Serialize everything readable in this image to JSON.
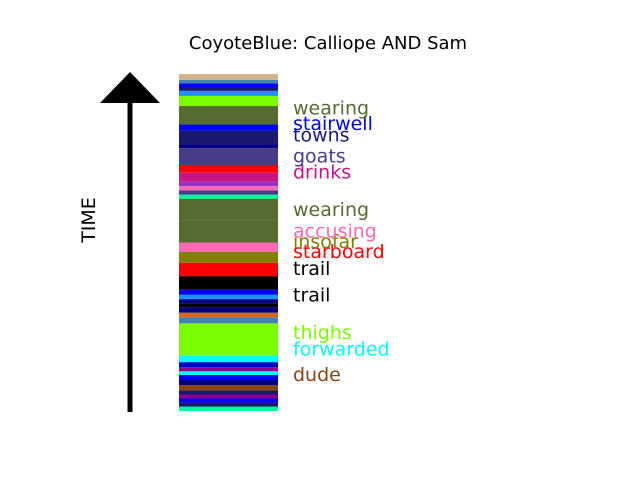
{
  "chart_data": {
    "type": "timeline",
    "title": "CoyoteBlue: Calliope AND Sam",
    "ylabel": "TIME",
    "y_range": [
      0,
      1
    ],
    "segments": [
      {
        "start": 0.0,
        "end": 0.013,
        "color": "#00FA9A"
      },
      {
        "start": 0.013,
        "end": 0.025,
        "color": "#191970"
      },
      {
        "start": 0.025,
        "end": 0.037,
        "color": "#0000FF"
      },
      {
        "start": 0.037,
        "end": 0.049,
        "color": "#8B008B"
      },
      {
        "start": 0.049,
        "end": 0.061,
        "color": "#191970"
      },
      {
        "start": 0.061,
        "end": 0.077,
        "color": "#8B4513"
      },
      {
        "start": 0.077,
        "end": 0.092,
        "color": "#000080"
      },
      {
        "start": 0.092,
        "end": 0.107,
        "color": "#0000FF"
      },
      {
        "start": 0.107,
        "end": 0.118,
        "color": "#00FFFF"
      },
      {
        "start": 0.118,
        "end": 0.13,
        "color": "#8B008B"
      },
      {
        "start": 0.13,
        "end": 0.145,
        "color": "#0000CD"
      },
      {
        "start": 0.145,
        "end": 0.165,
        "color": "#00FFFF"
      },
      {
        "start": 0.165,
        "end": 0.26,
        "color": "#7CFC00"
      },
      {
        "start": 0.26,
        "end": 0.278,
        "color": "#4682B4"
      },
      {
        "start": 0.278,
        "end": 0.292,
        "color": "#D2691E"
      },
      {
        "start": 0.292,
        "end": 0.308,
        "color": "#000080"
      },
      {
        "start": 0.308,
        "end": 0.32,
        "color": "#000000"
      },
      {
        "start": 0.32,
        "end": 0.332,
        "color": "#00008B"
      },
      {
        "start": 0.332,
        "end": 0.345,
        "color": "#1E90FF"
      },
      {
        "start": 0.345,
        "end": 0.36,
        "color": "#0000FF"
      },
      {
        "start": 0.36,
        "end": 0.4,
        "color": "#000000"
      },
      {
        "start": 0.4,
        "end": 0.44,
        "color": "#FF0000"
      },
      {
        "start": 0.44,
        "end": 0.472,
        "color": "#808000"
      },
      {
        "start": 0.472,
        "end": 0.5,
        "color": "#FF69B4"
      },
      {
        "start": 0.5,
        "end": 0.565,
        "color": "#556B2F"
      },
      {
        "start": 0.565,
        "end": 0.63,
        "color": "#556B2F"
      },
      {
        "start": 0.63,
        "end": 0.642,
        "color": "#00FA9A"
      },
      {
        "start": 0.642,
        "end": 0.655,
        "color": "#483D8B"
      },
      {
        "start": 0.655,
        "end": 0.667,
        "color": "#FF69B4"
      },
      {
        "start": 0.667,
        "end": 0.68,
        "color": "#9932CC"
      },
      {
        "start": 0.68,
        "end": 0.707,
        "color": "#C71585"
      },
      {
        "start": 0.707,
        "end": 0.73,
        "color": "#FF0000"
      },
      {
        "start": 0.73,
        "end": 0.78,
        "color": "#483D8B"
      },
      {
        "start": 0.78,
        "end": 0.792,
        "color": "#000080"
      },
      {
        "start": 0.792,
        "end": 0.832,
        "color": "#191970"
      },
      {
        "start": 0.832,
        "end": 0.85,
        "color": "#0000FF"
      },
      {
        "start": 0.85,
        "end": 0.905,
        "color": "#556B2F"
      },
      {
        "start": 0.905,
        "end": 0.935,
        "color": "#7CFC00"
      },
      {
        "start": 0.935,
        "end": 0.95,
        "color": "#1E90FF"
      },
      {
        "start": 0.95,
        "end": 0.96,
        "color": "#191970"
      },
      {
        "start": 0.96,
        "end": 0.972,
        "color": "#0000FF"
      },
      {
        "start": 0.972,
        "end": 0.983,
        "color": "#4682B4"
      },
      {
        "start": 0.983,
        "end": 1.0,
        "color": "#D2B48C"
      }
    ],
    "labels": [
      {
        "text": "dude",
        "y": 0.11,
        "color": "#8B4513"
      },
      {
        "text": "forwarded",
        "y": 0.185,
        "color": "#00FFFF"
      },
      {
        "text": "thighs",
        "y": 0.235,
        "color": "#7CFC00"
      },
      {
        "text": "trail",
        "y": 0.345,
        "color": "#000000"
      },
      {
        "text": "trail",
        "y": 0.425,
        "color": "#000000"
      },
      {
        "text": "starboard",
        "y": 0.475,
        "color": "#FF0000"
      },
      {
        "text": "insofar",
        "y": 0.505,
        "color": "#808000"
      },
      {
        "text": "accusing",
        "y": 0.535,
        "color": "#FF69B4"
      },
      {
        "text": "wearing",
        "y": 0.6,
        "color": "#556B2F"
      },
      {
        "text": "drinks",
        "y": 0.71,
        "color": "#C71585"
      },
      {
        "text": "goats",
        "y": 0.758,
        "color": "#483D8B"
      },
      {
        "text": "towns",
        "y": 0.82,
        "color": "#191970"
      },
      {
        "text": "stairwell",
        "y": 0.855,
        "color": "#0000FF"
      },
      {
        "text": "wearing",
        "y": 0.9,
        "color": "#556B2F"
      }
    ]
  }
}
